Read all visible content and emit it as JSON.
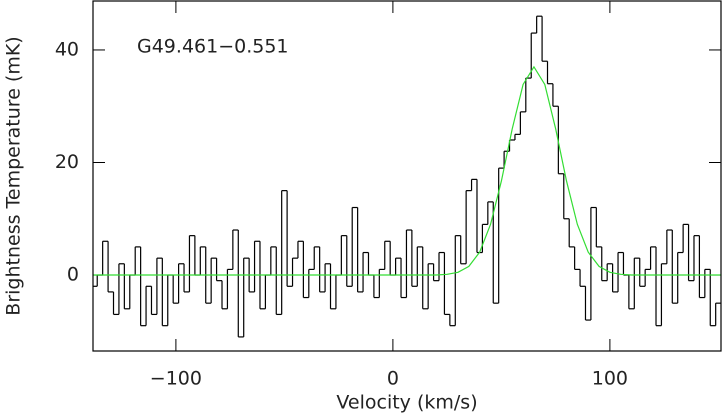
{
  "chart_data": {
    "type": "step",
    "annotation": "G49.461−0.551",
    "xlabel": "Velocity (km/s)",
    "ylabel": "Brightness Temperature (mK)",
    "xlim": [
      -138.2,
      151.2
    ],
    "ylim": [
      -13.5,
      48.7
    ],
    "xticks": [
      {
        "value": -100,
        "label": "−100"
      },
      0,
      100
    ],
    "yticks": [
      0,
      20,
      40
    ],
    "series": [
      {
        "name": "spectrum",
        "color": "#000000",
        "kind": "step",
        "x": [
          -137.5,
          -135,
          -132.5,
          -130,
          -127.5,
          -125,
          -122.5,
          -120,
          -117.5,
          -115,
          -112.5,
          -110,
          -107.5,
          -105,
          -102.5,
          -100,
          -97.5,
          -95,
          -92.5,
          -90,
          -87.5,
          -85,
          -82.5,
          -80,
          -77.5,
          -75,
          -72.5,
          -70,
          -67.5,
          -65,
          -62.5,
          -60,
          -57.5,
          -55,
          -52.5,
          -50,
          -47.5,
          -45,
          -42.5,
          -40,
          -37.5,
          -35,
          -32.5,
          -30,
          -27.5,
          -25,
          -22.5,
          -20,
          -17.5,
          -15,
          -12.5,
          -10,
          -7.5,
          -5,
          -2.5,
          0,
          2.5,
          5,
          7.5,
          10,
          12.5,
          15,
          17.5,
          20,
          22.5,
          25,
          27.5,
          30,
          32.5,
          35,
          37.5,
          40,
          42.5,
          45,
          47.5,
          50,
          52.5,
          55,
          57.5,
          60,
          62.5,
          65,
          67.5,
          70,
          72.5,
          75,
          77.5,
          80,
          82.5,
          85,
          87.5,
          90,
          92.5,
          95,
          97.5,
          100,
          102.5,
          105,
          107.5,
          110,
          112.5,
          115,
          117.5,
          120,
          122.5,
          125,
          127.5,
          130,
          132.5,
          135,
          137.5,
          140,
          142.5,
          145,
          147.5,
          150
        ],
        "values": [
          -2,
          0,
          6,
          -3,
          -7,
          2,
          -6,
          0,
          5,
          -9,
          -2,
          -7,
          3,
          -9,
          0,
          -5,
          2,
          -3,
          7,
          0,
          5,
          -5,
          3,
          -1,
          -6,
          1,
          8,
          -11,
          3,
          -3,
          6,
          -6,
          0,
          5,
          -7,
          15,
          -2,
          3,
          6,
          -4,
          1,
          5,
          -3,
          2,
          -6,
          0,
          7,
          -2,
          12,
          -3,
          4,
          0,
          -4,
          1,
          6,
          0,
          3,
          -4,
          8,
          -2,
          5,
          -6,
          2,
          -1,
          4,
          -7,
          -9,
          7,
          2,
          15,
          17,
          4,
          9,
          13,
          -5,
          19,
          22,
          24,
          25,
          29,
          35,
          43,
          46,
          38,
          34,
          30,
          18,
          10,
          5,
          1,
          -2,
          -8,
          12,
          5,
          -1,
          2,
          -3,
          4,
          0,
          -6,
          3,
          -2,
          1,
          5,
          -9,
          2,
          8,
          -5,
          4,
          9,
          -1,
          7,
          -4,
          1,
          -9,
          -5
        ]
      },
      {
        "name": "fit",
        "color": "#33dd33",
        "kind": "line",
        "x": [
          -138,
          20,
          25,
          30,
          35,
          40,
          45,
          50,
          55,
          60,
          65,
          70,
          75,
          80,
          85,
          90,
          95,
          100,
          105,
          110,
          151
        ],
        "values": [
          0,
          0,
          0.13,
          0.49,
          1.54,
          4.07,
          9.01,
          16.72,
          25.99,
          33.87,
          37,
          33.87,
          25.99,
          16.72,
          9.01,
          4.07,
          1.54,
          0.49,
          0.13,
          0,
          0
        ]
      }
    ]
  }
}
